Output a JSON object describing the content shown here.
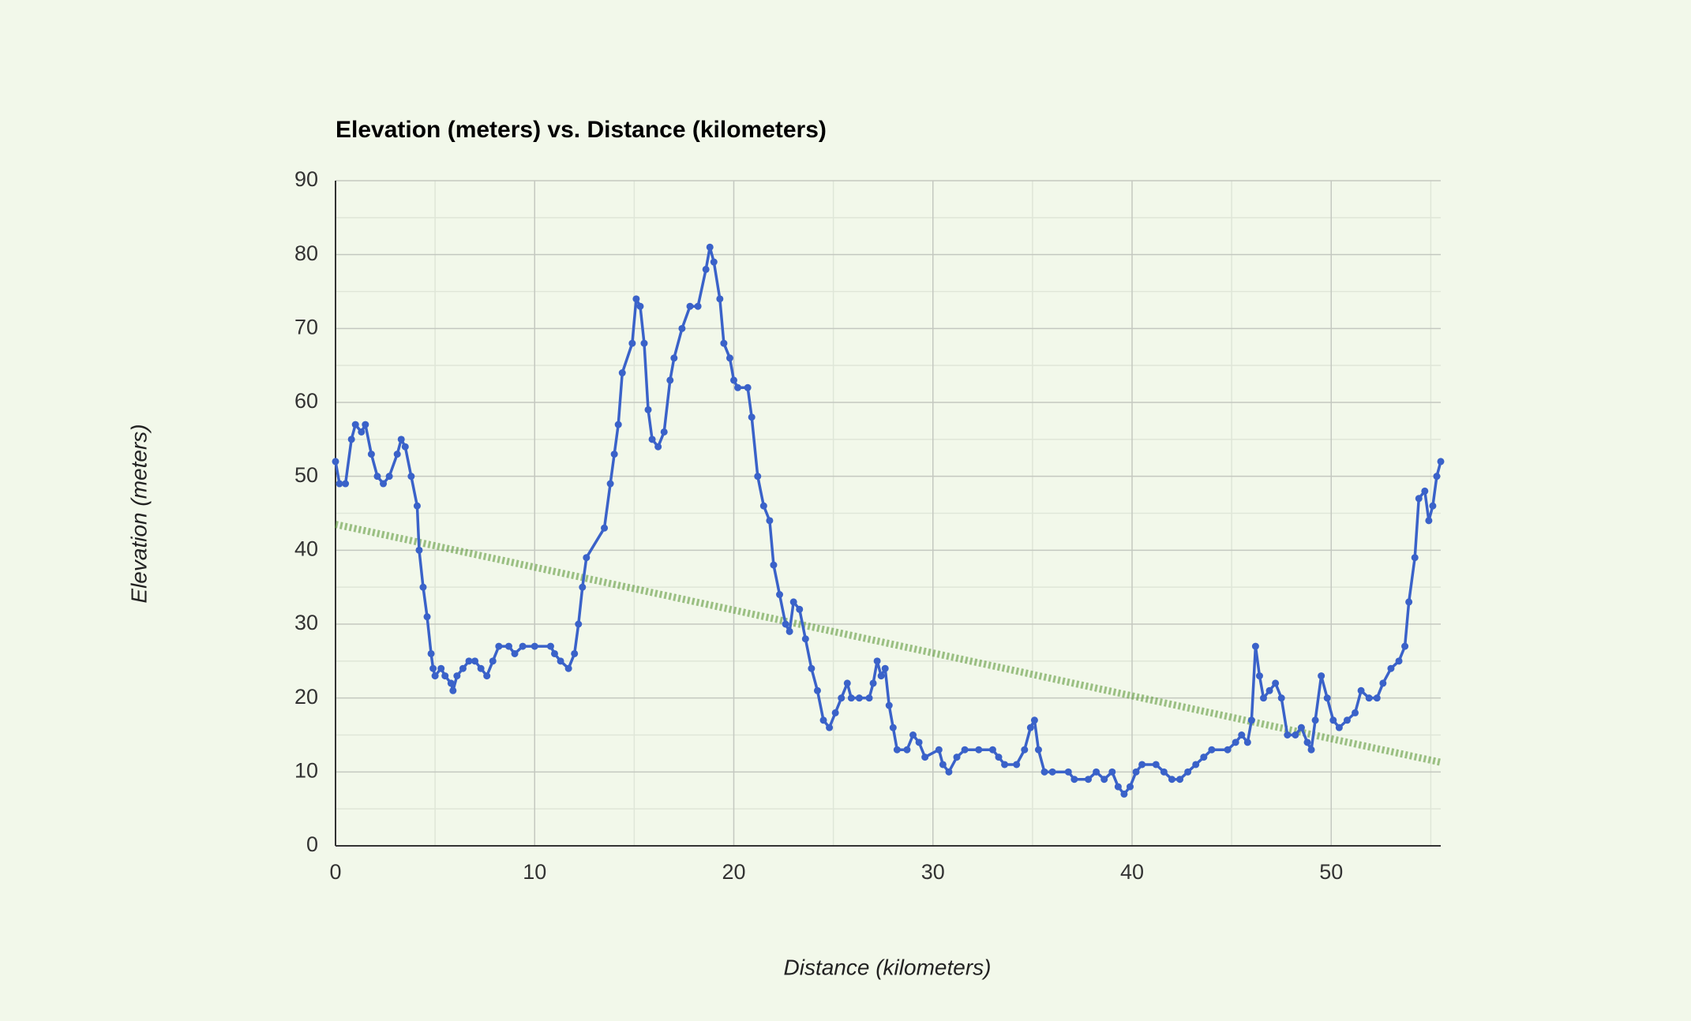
{
  "chart_data": {
    "type": "line",
    "title": "Elevation (meters) vs. Distance (kilometers)",
    "x_label": "Distance (kilometers)",
    "y_label": "Elevation (meters)",
    "color": "#3a62c9",
    "x": [
      0,
      0.2,
      0.5,
      0.8,
      1,
      1.3,
      1.5,
      1.8,
      2.1,
      2.4,
      2.7,
      3.1,
      3.3,
      3.5,
      3.8,
      4.1,
      4.2,
      4.4,
      4.6,
      4.8,
      4.9,
      5,
      5.3,
      5.5,
      5.8,
      5.9,
      6.1,
      6.4,
      6.7,
      7,
      7.3,
      7.6,
      7.9,
      8.2,
      8.7,
      9,
      9.4,
      10,
      10.8,
      11,
      11.3,
      11.7,
      12,
      12.2,
      12.4,
      12.6,
      13.5,
      13.8,
      14,
      14.2,
      14.4,
      14.9,
      15.1,
      15.3,
      15.5,
      15.7,
      15.9,
      16.2,
      16.5,
      16.8,
      17,
      17.4,
      17.8,
      18.2,
      18.6,
      18.8,
      19,
      19.3,
      19.5,
      19.8,
      20,
      20.2,
      20.7,
      20.9,
      21.2,
      21.5,
      21.8,
      22,
      22.3,
      22.6,
      22.8,
      23,
      23.3,
      23.6,
      23.9,
      24.2,
      24.5,
      24.8,
      25.1,
      25.4,
      25.7,
      25.9,
      26.3,
      26.8,
      27,
      27.2,
      27.4,
      27.6,
      27.8,
      28,
      28.2,
      28.7,
      29,
      29.3,
      29.6,
      30.3,
      30.5,
      30.8,
      31.2,
      31.6,
      32.3,
      33,
      33.3,
      33.6,
      34.2,
      34.6,
      34.9,
      35.1,
      35.3,
      35.6,
      36,
      36.8,
      37.1,
      37.8,
      38.2,
      38.6,
      39,
      39.3,
      39.6,
      39.9,
      40.2,
      40.5,
      41.2,
      41.6,
      42,
      42.4,
      42.8,
      43.2,
      43.6,
      44,
      44.8,
      45.2,
      45.5,
      45.8,
      46,
      46.2,
      46.4,
      46.6,
      46.9,
      47.2,
      47.5,
      47.8,
      48.2,
      48.5,
      48.8,
      49,
      49.2,
      49.5,
      49.8,
      50.1,
      50.4,
      50.8,
      51.2,
      51.5,
      51.9,
      52.3,
      52.6,
      53,
      53.4,
      53.7,
      53.9,
      54.2,
      54.4,
      54.7,
      54.9,
      55.1,
      55.3,
      55.5
    ],
    "values": [
      52,
      49,
      49,
      55,
      57,
      56,
      57,
      53,
      50,
      49,
      50,
      53,
      55,
      54,
      50,
      46,
      40,
      35,
      31,
      26,
      24,
      23,
      24,
      23,
      22,
      21,
      23,
      24,
      25,
      25,
      24,
      23,
      25,
      27,
      27,
      26,
      27,
      27,
      27,
      26,
      25,
      24,
      26,
      30,
      35,
      39,
      43,
      49,
      53,
      57,
      64,
      68,
      74,
      73,
      68,
      59,
      55,
      54,
      56,
      63,
      66,
      70,
      73,
      73,
      78,
      81,
      79,
      74,
      68,
      66,
      63,
      62,
      62,
      58,
      50,
      46,
      44,
      38,
      34,
      30,
      29,
      33,
      32,
      28,
      24,
      21,
      17,
      16,
      18,
      20,
      22,
      20,
      20,
      20,
      22,
      25,
      23,
      24,
      19,
      16,
      13,
      13,
      15,
      14,
      12,
      13,
      11,
      10,
      12,
      13,
      13,
      13,
      12,
      11,
      11,
      13,
      16,
      17,
      13,
      10,
      10,
      10,
      9,
      9,
      10,
      9,
      10,
      8,
      7,
      8,
      10,
      11,
      11,
      10,
      9,
      9,
      10,
      11,
      12,
      13,
      13,
      14,
      15,
      14,
      17,
      27,
      23,
      20,
      21,
      22,
      20,
      15,
      15,
      16,
      14,
      13,
      17,
      23,
      20,
      17,
      16,
      17,
      18,
      21,
      20,
      20,
      22,
      24,
      25,
      27,
      33,
      39,
      47,
      48,
      44,
      46,
      50,
      52
    ],
    "trendline": {
      "color": "#5f9a3c",
      "x": [
        0,
        55.5
      ],
      "values": [
        43.5,
        11.3
      ]
    },
    "xlim": [
      0,
      55.5
    ],
    "xticks": [
      0,
      10,
      20,
      30,
      40,
      50
    ],
    "xminorticks": [
      5,
      15,
      25,
      35,
      45,
      55
    ],
    "ylim": [
      0,
      90
    ],
    "yticks": [
      0,
      10,
      20,
      30,
      40,
      50,
      60,
      70,
      80,
      90
    ],
    "yminorticks": [
      5,
      15,
      25,
      35,
      45,
      55,
      65,
      75,
      85
    ],
    "grid": true
  }
}
